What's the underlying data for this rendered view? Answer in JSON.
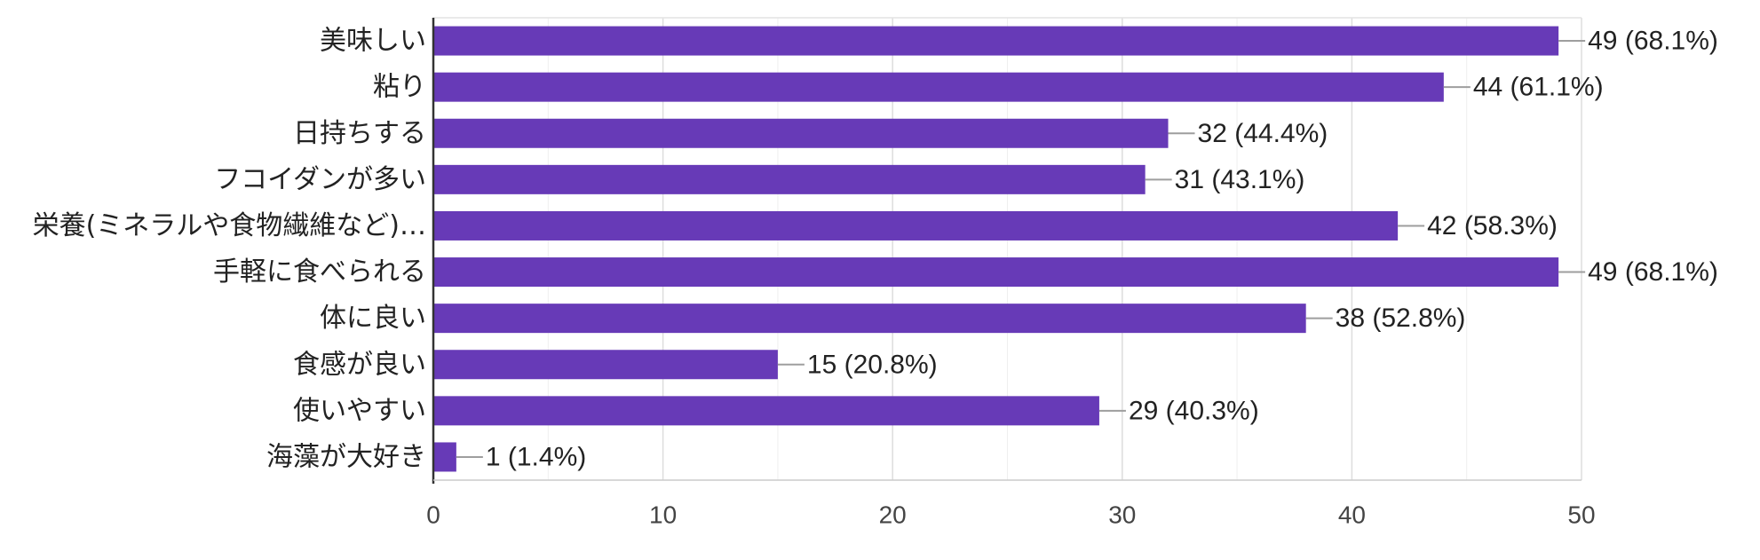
{
  "chart_data": {
    "type": "bar",
    "orientation": "horizontal",
    "title": "",
    "xlabel": "",
    "ylabel": "",
    "categories": [
      "美味しい",
      "粘り",
      "日持ちする",
      "フコイダンが多い",
      "栄養(ミネラルや食物繊維など)…",
      "手軽に食べられる",
      "体に良い",
      "食感が良い",
      "使いやすい",
      "海藻が大好き"
    ],
    "values": [
      49,
      44,
      32,
      31,
      42,
      49,
      38,
      15,
      29,
      1
    ],
    "value_labels": [
      "49 (68.1%)",
      "44 (61.1%)",
      "32 (44.4%)",
      "31 (43.1%)",
      "42 (58.3%)",
      "49 (68.1%)",
      "38 (52.8%)",
      "15 (20.8%)",
      "29 (40.3%)",
      "1 (1.4%)"
    ],
    "xlim": [
      0,
      50
    ],
    "xticks": [
      "0",
      "10",
      "20",
      "30",
      "40",
      "50"
    ],
    "grid": true,
    "bar_color": "#673ab7",
    "leader_color": "#9e9e9e",
    "legend": "none"
  }
}
